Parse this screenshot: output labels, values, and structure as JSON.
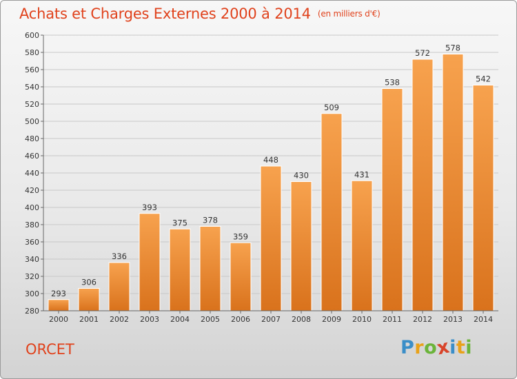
{
  "title": "Achats et Charges Externes 2000 à 2014",
  "unit_note": "(en milliers d'€)",
  "commune": "ORCET",
  "logo": {
    "letters": [
      "P",
      "r",
      "o",
      "x",
      "i",
      "t",
      "i"
    ],
    "colors": [
      "#3a8ec8",
      "#e8a21a",
      "#6bb43a",
      "#d8442a",
      "#3a8ec8",
      "#e8a21a",
      "#6bb43a"
    ]
  },
  "chart_data": {
    "type": "bar",
    "categories": [
      "2000",
      "2001",
      "2002",
      "2003",
      "2004",
      "2005",
      "2006",
      "2007",
      "2008",
      "2009",
      "2010",
      "2011",
      "2012",
      "2013",
      "2014"
    ],
    "values": [
      293,
      306,
      336,
      393,
      375,
      378,
      359,
      448,
      430,
      509,
      431,
      538,
      572,
      578,
      542
    ],
    "ylim": [
      280,
      600
    ],
    "yticks": [
      280,
      300,
      320,
      340,
      360,
      380,
      400,
      420,
      440,
      460,
      480,
      500,
      520,
      540,
      560,
      580,
      600
    ],
    "grid": true,
    "bar_color_top": "#f7a24e",
    "bar_color_bottom": "#d9721c"
  }
}
